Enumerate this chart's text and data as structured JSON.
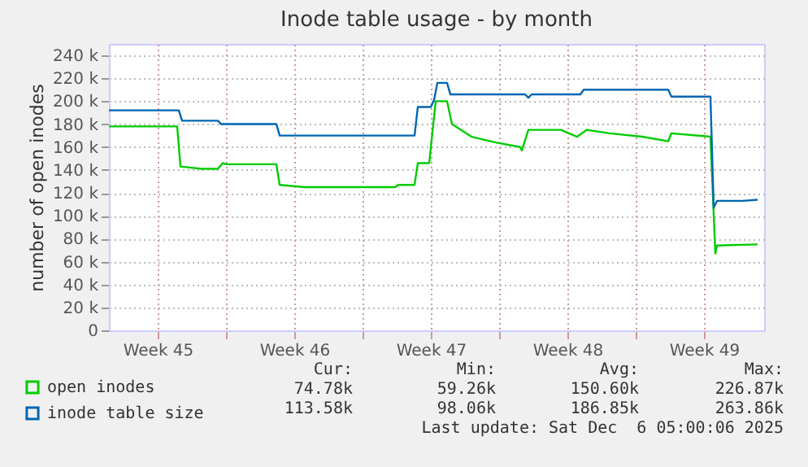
{
  "chart_data": {
    "type": "line",
    "title": "Inode table usage - by month",
    "ylabel": "number of open inodes",
    "series": [
      {
        "name": "open inodes",
        "color": "#00cc00",
        "x": [
          "2025-11-04T00:00",
          "2025-11-07T12:00",
          "2025-11-07T16:00",
          "2025-11-08T18:00",
          "2025-11-09T14:00",
          "2025-11-09T20:00",
          "2025-11-10T00:00",
          "2025-11-12T14:00",
          "2025-11-12T18:00",
          "2025-11-14T00:00",
          "2025-11-18T16:00",
          "2025-11-18T20:00",
          "2025-11-19T16:00",
          "2025-11-19T20:00",
          "2025-11-20T10:00",
          "2025-11-20T18:00",
          "2025-11-21T08:00",
          "2025-11-21T14:00",
          "2025-11-22T14:00",
          "2025-11-23T20:00",
          "2025-11-25T02:00",
          "2025-11-25T04:00",
          "2025-11-25T12:00",
          "2025-11-27T04:00",
          "2025-11-28T00:00",
          "2025-11-28T12:00",
          "2025-11-29T16:00",
          "2025-12-01T08:00",
          "2025-12-02T16:00",
          "2025-12-02T20:00",
          "2025-12-04T20:00",
          "2025-12-05T02:00",
          "2025-12-05T04:00",
          "2025-12-07T06:00"
        ],
        "values": [
          178,
          178,
          143,
          141,
          141,
          146,
          145,
          145,
          127,
          125,
          125,
          127,
          127,
          146,
          146,
          200,
          200,
          180,
          169,
          164,
          160,
          157,
          175,
          175,
          169,
          175,
          172,
          169,
          165,
          172,
          169,
          67,
          74,
          75
        ]
      },
      {
        "name": "inode table size",
        "color": "#0066b3",
        "x": [
          "2025-11-04T00:00",
          "2025-11-07T14:00",
          "2025-11-07T18:00",
          "2025-11-09T14:00",
          "2025-11-09T18:00",
          "2025-11-12T14:00",
          "2025-11-12T18:00",
          "2025-11-19T16:00",
          "2025-11-19T20:00",
          "2025-11-20T12:00",
          "2025-11-20T16:00",
          "2025-11-20T20:00",
          "2025-11-21T08:00",
          "2025-11-21T12:00",
          "2025-11-25T08:00",
          "2025-11-25T12:00",
          "2025-11-25T16:00",
          "2025-11-28T04:00",
          "2025-11-28T08:00",
          "2025-12-02T16:00",
          "2025-12-02T20:00",
          "2025-12-04T20:00",
          "2025-12-05T00:00",
          "2025-12-05T04:00",
          "2025-12-06T12:00",
          "2025-12-07T06:00"
        ],
        "values": [
          192,
          192,
          183,
          183,
          180,
          180,
          170,
          170,
          195,
          195,
          201,
          216,
          216,
          206,
          206,
          203,
          206,
          206,
          210,
          210,
          204,
          204,
          107,
          113,
          113,
          114
        ]
      }
    ],
    "xlim": [
      "2025-11-04T00:00",
      "2025-12-07T14:00"
    ],
    "xticks": [
      {
        "value": "2025-11-06T12:00",
        "label": "Week 45"
      },
      {
        "value": "2025-11-10T00:00",
        "label": null
      },
      {
        "value": "2025-11-13T12:00",
        "label": "Week 46"
      },
      {
        "value": "2025-11-17T00:00",
        "label": null
      },
      {
        "value": "2025-11-20T12:00",
        "label": "Week 47"
      },
      {
        "value": "2025-11-24T00:00",
        "label": null
      },
      {
        "value": "2025-11-27T12:00",
        "label": "Week 48"
      },
      {
        "value": "2025-12-01T00:00",
        "label": null
      },
      {
        "value": "2025-12-04T12:00",
        "label": "Week 49"
      }
    ],
    "ylim": [
      0,
      250
    ],
    "yticks": [
      {
        "value": 0,
        "label": "0"
      },
      {
        "value": 20,
        "label": "20 k"
      },
      {
        "value": 40,
        "label": "40 k"
      },
      {
        "value": 60,
        "label": "60 k"
      },
      {
        "value": 80,
        "label": "80 k"
      },
      {
        "value": 100,
        "label": "100 k"
      },
      {
        "value": 120,
        "label": "120 k"
      },
      {
        "value": 140,
        "label": "140 k"
      },
      {
        "value": 160,
        "label": "160 k"
      },
      {
        "value": 180,
        "label": "180 k"
      },
      {
        "value": 200,
        "label": "200 k"
      },
      {
        "value": 220,
        "label": "220 k"
      },
      {
        "value": 240,
        "label": "240 k"
      }
    ],
    "grid": true,
    "legend": "bottom left",
    "annotations": [
      "Cur:",
      "Min:",
      "Avg:",
      "Max:",
      "74.78k",
      "59.26k",
      "150.60k",
      "226.87k",
      "113.58k",
      "98.06k",
      "186.85k",
      "263.86k",
      "Last update: Sat Dec  6 05:00:06 2025"
    ]
  }
}
